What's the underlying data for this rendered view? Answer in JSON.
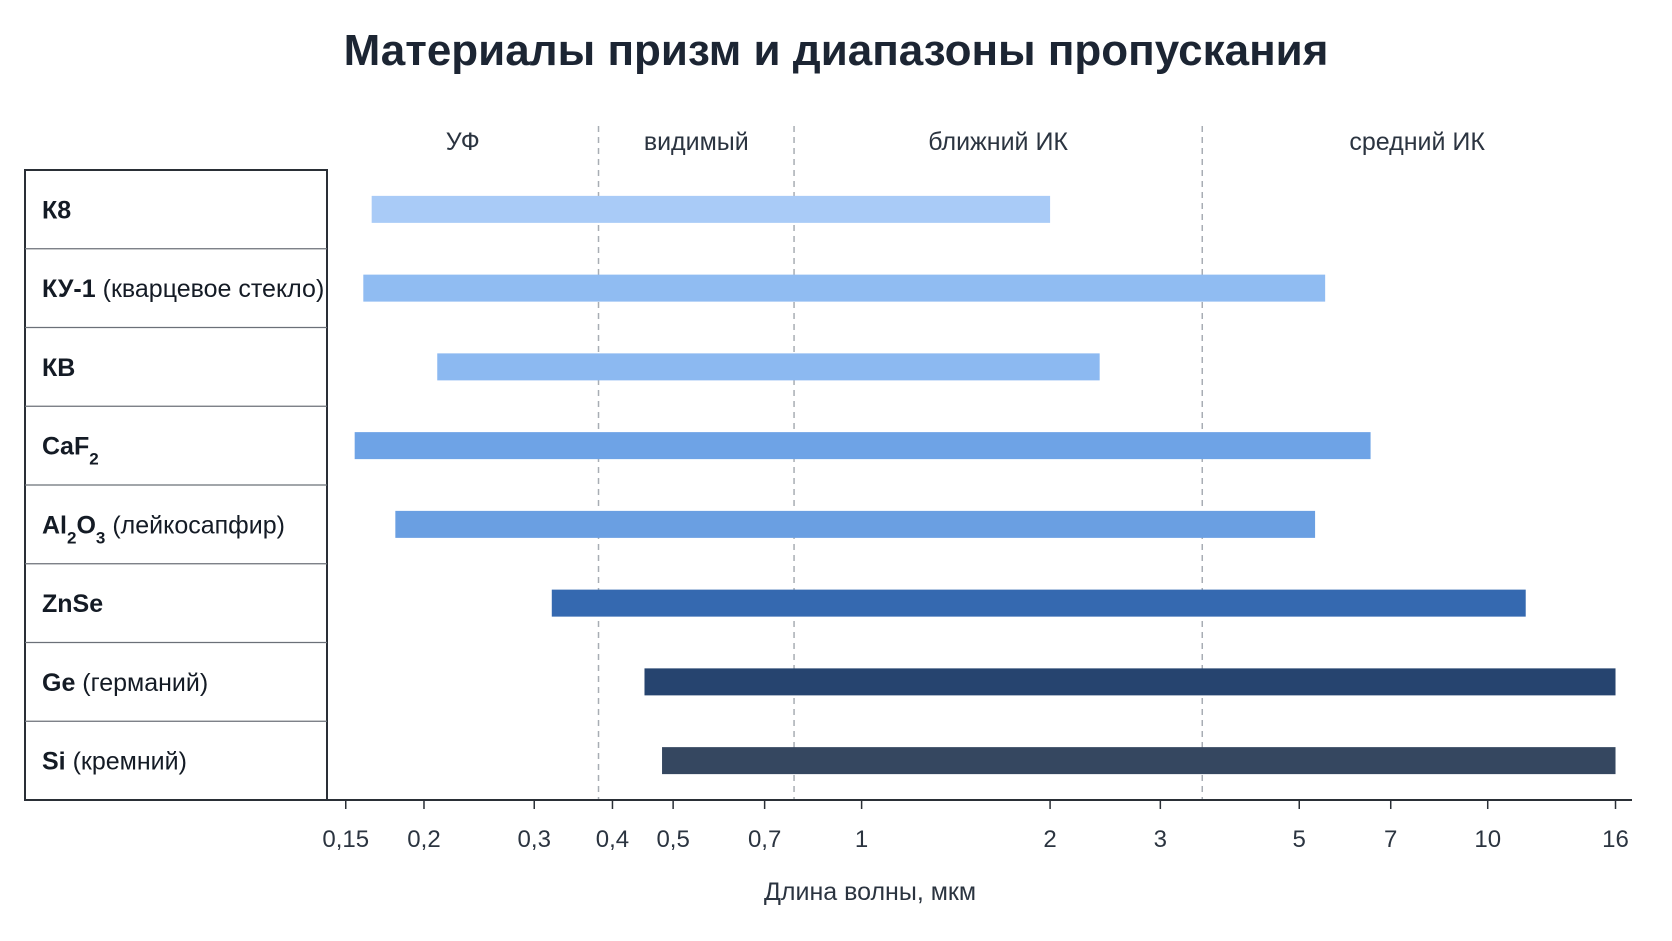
{
  "chart_data": {
    "type": "bar",
    "orientation": "horizontal-range",
    "title": "Материалы призм и диапазоны пропускания",
    "xlabel": "Длина волны, мкм",
    "xscale": "log",
    "xlim": [
      0.14,
      17
    ],
    "xticks": [
      0.15,
      0.2,
      0.3,
      0.4,
      0.5,
      0.7,
      1,
      2,
      3,
      5,
      7,
      10,
      16
    ],
    "xtick_labels": [
      "0,15",
      "0,2",
      "0,3",
      "0,4",
      "0,5",
      "0,7",
      "1",
      "2",
      "3",
      "5",
      "7",
      "10",
      "16"
    ],
    "regions": [
      {
        "label": "УФ",
        "from": 0.14,
        "to": 0.38
      },
      {
        "label": "видимый",
        "from": 0.38,
        "to": 0.78
      },
      {
        "label": "ближний ИК",
        "from": 0.78,
        "to": 3.5
      },
      {
        "label": "средний ИК",
        "from": 3.5,
        "to": 17
      }
    ],
    "region_boundaries": [
      0.38,
      0.78,
      3.5
    ],
    "grid": false,
    "legend": "none",
    "series": [
      {
        "name": "К8",
        "parts": [
          {
            "t": "К8",
            "b": true
          }
        ],
        "min": 0.165,
        "max": 2.0,
        "color": "#a9cbf7"
      },
      {
        "name": "КУ-1 (кварцевое стекло)",
        "parts": [
          {
            "t": "КУ-1",
            "b": true
          },
          {
            "t": " (кварцевое стекло)",
            "b": false
          }
        ],
        "min": 0.16,
        "max": 5.5,
        "color": "#90bcf2"
      },
      {
        "name": "КВ",
        "parts": [
          {
            "t": "КВ",
            "b": true
          }
        ],
        "min": 0.21,
        "max": 2.4,
        "color": "#8cb9f1"
      },
      {
        "name": "CaF2",
        "parts": [
          {
            "t": "CaF",
            "b": true
          },
          {
            "t": "2",
            "b": true,
            "sub": true
          }
        ],
        "min": 0.155,
        "max": 6.5,
        "color": "#6ea3e6"
      },
      {
        "name": "Al2O3 (лейкосапфир)",
        "parts": [
          {
            "t": "Al",
            "b": true
          },
          {
            "t": "2",
            "b": true,
            "sub": true
          },
          {
            "t": "O",
            "b": true
          },
          {
            "t": "3",
            "b": true,
            "sub": true
          },
          {
            "t": " (лейкосапфир)",
            "b": false
          }
        ],
        "min": 0.18,
        "max": 5.3,
        "color": "#6a9fe2"
      },
      {
        "name": "ZnSe",
        "parts": [
          {
            "t": "ZnSe",
            "b": true
          }
        ],
        "min": 0.32,
        "max": 11.5,
        "color": "#3569b0"
      },
      {
        "name": "Ge (германий)",
        "parts": [
          {
            "t": "Ge",
            "b": true
          },
          {
            "t": " (германий)",
            "b": false
          }
        ],
        "min": 0.45,
        "max": 16,
        "color": "#26446f"
      },
      {
        "name": "Si (кремний)",
        "parts": [
          {
            "t": "Si",
            "b": true
          },
          {
            "t": " (кремний)",
            "b": false
          }
        ],
        "min": 0.48,
        "max": 16,
        "color": "#354760"
      }
    ]
  }
}
